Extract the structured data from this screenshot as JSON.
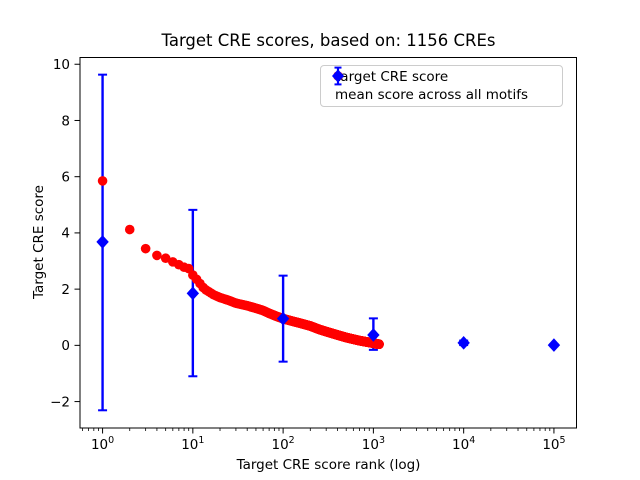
{
  "figure": {
    "background": "#ffffff"
  },
  "chart_data": {
    "type": "scatter",
    "title": "Target CRE scores, based on: 1156 CREs",
    "xlabel": "Target CRE score rank (log)",
    "ylabel": "Target CRE score",
    "x_scale": "log10",
    "xlim_log10": [
      -0.25,
      5.25
    ],
    "ylim": [
      -2.94,
      10.24
    ],
    "x_tick_exponents": [
      0,
      1,
      2,
      3,
      4,
      5
    ],
    "y_ticks": [
      -2,
      0,
      2,
      4,
      6,
      8,
      10
    ],
    "grid": false,
    "legend_position": "upper right",
    "n_cres": 1156,
    "series": [
      {
        "name": "target CRE score",
        "type": "scatter",
        "marker": "circle",
        "color": "#ff0000",
        "n_points": 1156,
        "curve_anchors": [
          [
            1,
            5.85
          ],
          [
            2,
            4.12
          ],
          [
            3,
            3.44
          ],
          [
            4,
            3.2
          ],
          [
            5,
            3.1
          ],
          [
            6,
            2.97
          ],
          [
            7,
            2.87
          ],
          [
            8,
            2.78
          ],
          [
            9,
            2.73
          ],
          [
            10,
            2.5
          ],
          [
            11,
            2.35
          ],
          [
            12,
            2.2
          ],
          [
            13,
            2.06
          ],
          [
            14,
            1.97
          ],
          [
            15,
            1.91
          ],
          [
            17,
            1.8
          ],
          [
            20,
            1.7
          ],
          [
            25,
            1.6
          ],
          [
            30,
            1.5
          ],
          [
            40,
            1.41
          ],
          [
            50,
            1.32
          ],
          [
            60,
            1.24
          ],
          [
            70,
            1.14
          ],
          [
            85,
            1.03
          ],
          [
            100,
            0.95
          ],
          [
            130,
            0.85
          ],
          [
            150,
            0.8
          ],
          [
            200,
            0.69
          ],
          [
            250,
            0.57
          ],
          [
            300,
            0.49
          ],
          [
            400,
            0.37
          ],
          [
            500,
            0.28
          ],
          [
            600,
            0.22
          ],
          [
            700,
            0.17
          ],
          [
            850,
            0.12
          ],
          [
            1000,
            0.08
          ],
          [
            1100,
            0.05
          ],
          [
            1156,
            0.04
          ]
        ]
      },
      {
        "name": "mean score across all motifs",
        "type": "errorbar",
        "marker": "diamond",
        "color": "#0000ff",
        "points": [
          {
            "rank": 1,
            "mean": 3.68,
            "lo": -2.31,
            "hi": 9.63
          },
          {
            "rank": 10,
            "mean": 1.85,
            "lo": -1.1,
            "hi": 4.82
          },
          {
            "rank": 100,
            "mean": 0.95,
            "lo": -0.58,
            "hi": 2.48
          },
          {
            "rank": 1000,
            "mean": 0.37,
            "lo": -0.16,
            "hi": 0.96
          },
          {
            "rank": 10000,
            "mean": 0.09,
            "lo": 0.01,
            "hi": 0.17
          },
          {
            "rank": 100000,
            "mean": 0.01,
            "lo": -0.03,
            "hi": 0.05
          }
        ]
      }
    ]
  }
}
